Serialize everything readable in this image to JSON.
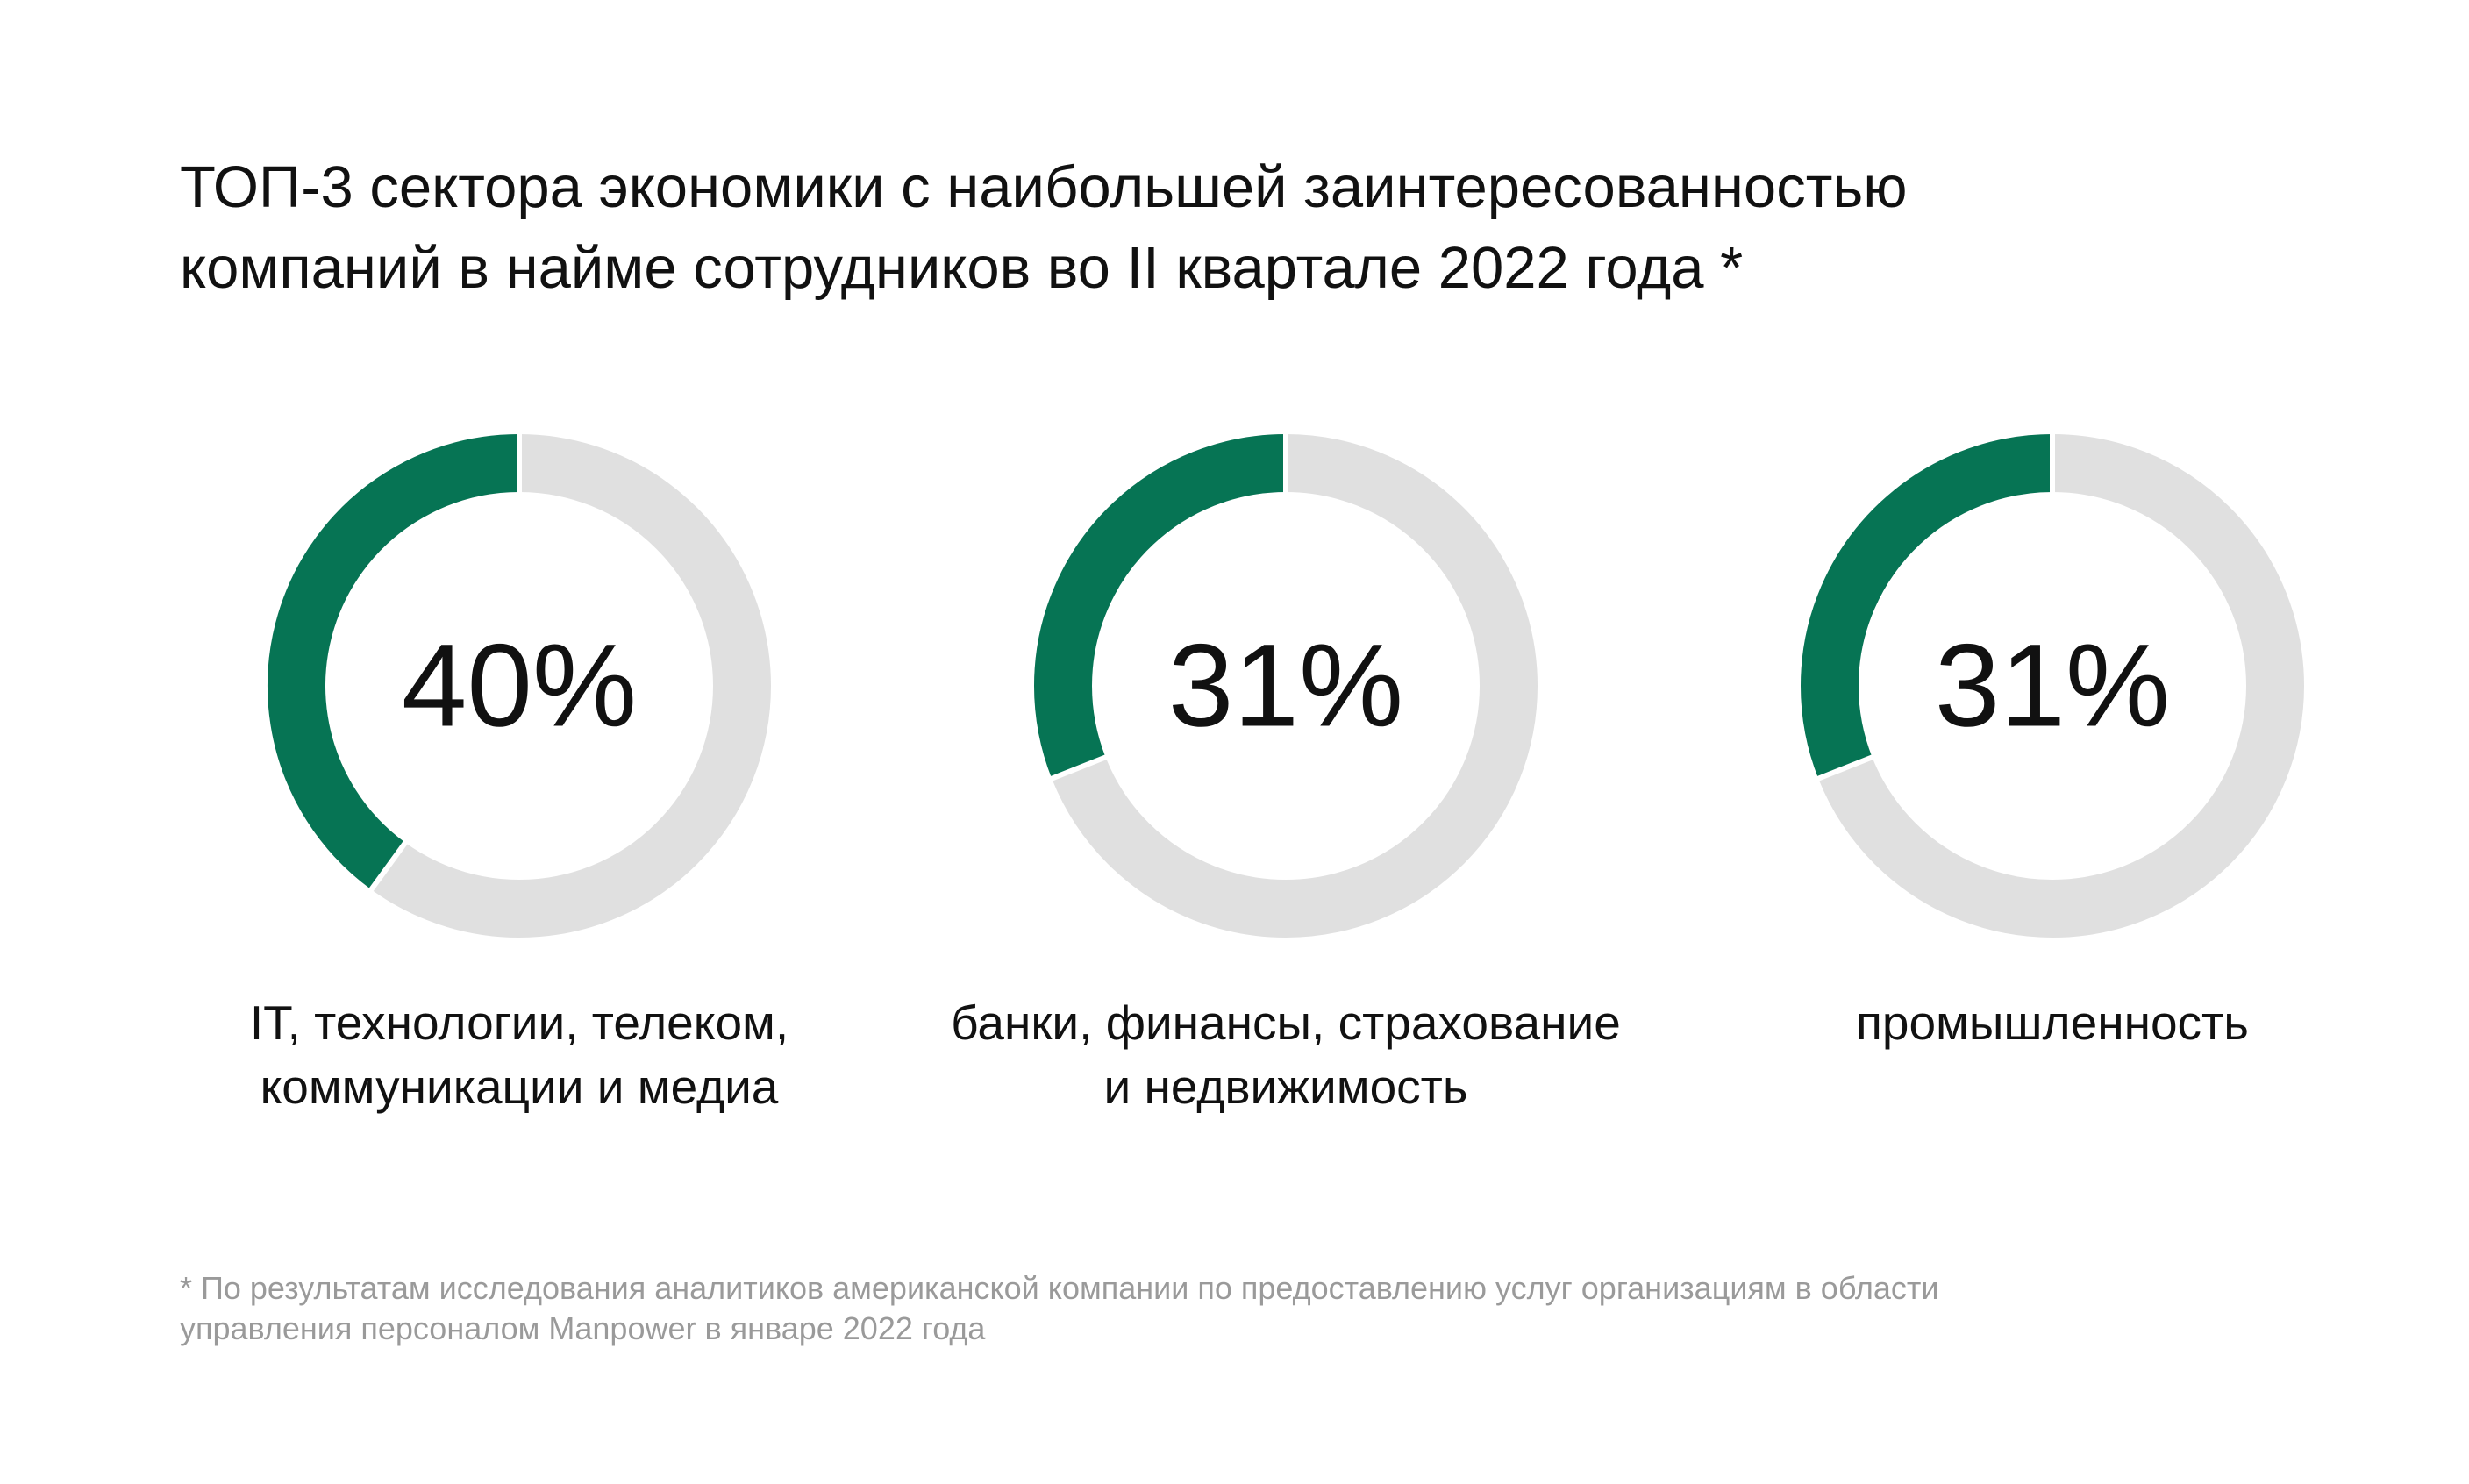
{
  "title_line1": "ТОП-3 сектора экономики с наибольшей заинтересованностью",
  "title_line2": "компаний в найме сотрудников во II квартале 2022 года *",
  "colors": {
    "filled": "#067454",
    "empty": "#e0e0e0",
    "separator": "#ffffff"
  },
  "chart_data": [
    {
      "type": "pie",
      "donut": true,
      "value": 40,
      "value_label": "40%",
      "label_line1": "IT, технологии, телеком,",
      "label_line2": "коммуникации и медиа"
    },
    {
      "type": "pie",
      "donut": true,
      "value": 31,
      "value_label": "31%",
      "label_line1": "банки, финансы, страхование",
      "label_line2": "и недвижимость"
    },
    {
      "type": "pie",
      "donut": true,
      "value": 31,
      "value_label": "31%",
      "label_line1": "промышленность",
      "label_line2": ""
    }
  ],
  "footnote_line1": "* По результатам исследования аналитиков американской компании по предоставлению услуг организациям в области",
  "footnote_line2": "управления персоналом Manpower в январе 2022 года"
}
